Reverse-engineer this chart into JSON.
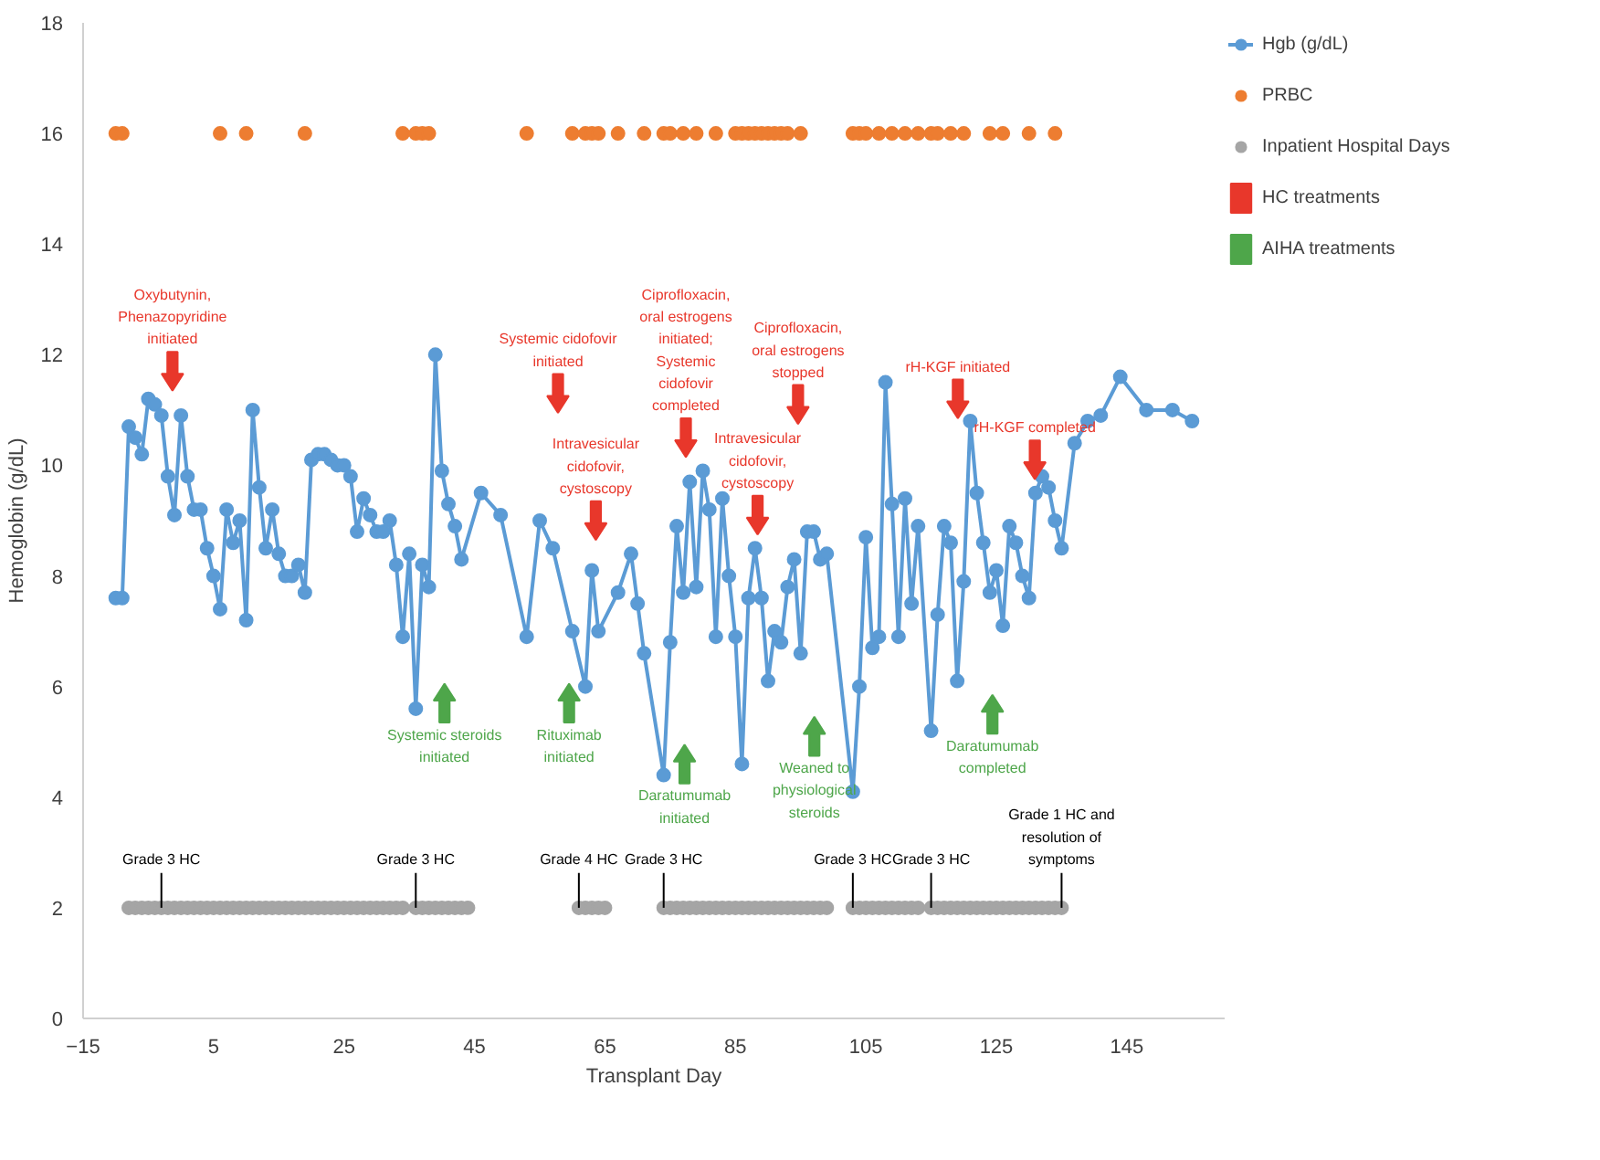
{
  "chart_data": {
    "type": "line",
    "xlabel": "Transplant Day",
    "ylabel": "Hemoglobin (g/dL)",
    "xlim": [
      -15,
      160
    ],
    "xticks": [
      -15,
      5,
      25,
      45,
      65,
      85,
      105,
      125,
      145
    ],
    "ylim": [
      0,
      18
    ],
    "yticks": [
      0,
      2,
      4,
      6,
      8,
      10,
      12,
      14,
      16,
      18
    ],
    "grid": false,
    "legend": "right",
    "series": [
      {
        "name": "Hgb (g/dL)",
        "marker": "circle",
        "color": "#5b9bd5",
        "x": [
          -10,
          -9,
          -8,
          -7,
          -6,
          -5,
          -4,
          -3,
          -2,
          -1,
          0,
          1,
          2,
          3,
          4,
          5,
          6,
          7,
          8,
          9,
          10,
          11,
          12,
          13,
          14,
          15,
          16,
          17,
          18,
          19,
          20,
          21,
          22,
          23,
          24,
          25,
          26,
          27,
          28,
          29,
          30,
          31,
          32,
          33,
          34,
          35,
          36,
          37,
          38,
          39,
          40,
          41,
          42,
          43,
          46,
          49,
          53,
          55,
          57,
          60,
          62,
          63,
          64,
          67,
          69,
          70,
          71,
          74,
          75,
          76,
          77,
          78,
          79,
          80,
          81,
          82,
          83,
          84,
          85,
          86,
          87,
          88,
          89,
          90,
          91,
          92,
          93,
          94,
          95,
          96,
          97,
          98,
          99,
          103,
          104,
          105,
          106,
          107,
          108,
          109,
          110,
          111,
          112,
          113,
          115,
          116,
          117,
          118,
          119,
          120,
          121,
          122,
          123,
          124,
          125,
          126,
          127,
          128,
          129,
          130,
          131,
          132,
          133,
          134,
          135,
          137,
          139,
          141,
          144,
          148,
          152,
          155
        ],
        "values": [
          7.6,
          7.6,
          10.7,
          10.5,
          10.2,
          11.2,
          11.1,
          10.9,
          9.8,
          9.1,
          10.9,
          9.8,
          9.2,
          9.2,
          8.5,
          8.0,
          7.4,
          9.2,
          8.6,
          9.0,
          7.2,
          11.0,
          9.6,
          8.5,
          9.2,
          8.4,
          8.0,
          8.0,
          8.2,
          7.7,
          10.1,
          10.2,
          10.2,
          10.1,
          10.0,
          10.0,
          9.8,
          8.8,
          9.4,
          9.1,
          8.8,
          8.8,
          9.0,
          8.2,
          6.9,
          8.4,
          5.6,
          8.2,
          7.8,
          12.0,
          9.9,
          9.3,
          8.9,
          8.3,
          9.5,
          9.1,
          6.9,
          9.0,
          8.5,
          7.0,
          6.0,
          8.1,
          7.0,
          7.7,
          8.4,
          7.5,
          6.6,
          4.4,
          6.8,
          8.9,
          7.7,
          9.7,
          7.8,
          9.9,
          9.2,
          6.9,
          9.4,
          8.0,
          6.9,
          4.6,
          7.6,
          8.5,
          7.6,
          6.1,
          7.0,
          6.8,
          7.8,
          8.3,
          6.6,
          8.8,
          8.8,
          8.3,
          8.4,
          4.1,
          6.0,
          8.7,
          6.7,
          6.9,
          11.5,
          9.3,
          6.9,
          9.4,
          7.5,
          8.9,
          5.2,
          7.3,
          8.9,
          8.6,
          6.1,
          7.9,
          10.8,
          9.5,
          8.6,
          7.7,
          8.1,
          7.1,
          8.9,
          8.6,
          8.0,
          7.6,
          9.5,
          9.8,
          9.6,
          9.0,
          8.5,
          10.4,
          10.8,
          10.9,
          11.6,
          11.0,
          11.0,
          10.8
        ]
      },
      {
        "name": "PRBC",
        "type": "scatter",
        "marker": "circle",
        "color": "#ed7d31",
        "x": [
          -10,
          -9,
          6,
          10,
          19,
          34,
          36,
          37,
          38,
          53,
          60,
          62,
          63,
          64,
          67,
          71,
          74,
          75,
          77,
          79,
          82,
          85,
          86,
          87,
          88,
          89,
          90,
          91,
          92,
          93,
          95,
          103,
          104,
          105,
          107,
          109,
          111,
          113,
          115,
          116,
          118,
          120,
          124,
          126,
          130,
          134
        ],
        "values": [
          16,
          16,
          16,
          16,
          16,
          16,
          16,
          16,
          16,
          16,
          16,
          16,
          16,
          16,
          16,
          16,
          16,
          16,
          16,
          16,
          16,
          16,
          16,
          16,
          16,
          16,
          16,
          16,
          16,
          16,
          16,
          16,
          16,
          16,
          16,
          16,
          16,
          16,
          16,
          16,
          16,
          16,
          16,
          16,
          16,
          16
        ]
      },
      {
        "name": "Inpatient Hospital Days",
        "type": "scatter",
        "marker": "circle",
        "color": "#a5a5a5",
        "x": [
          -8,
          -7,
          -6,
          -5,
          -4,
          -3,
          -2,
          -1,
          0,
          1,
          2,
          3,
          4,
          5,
          6,
          7,
          8,
          9,
          10,
          11,
          12,
          13,
          14,
          15,
          16,
          17,
          18,
          19,
          20,
          21,
          22,
          23,
          24,
          25,
          26,
          27,
          28,
          29,
          30,
          31,
          32,
          33,
          34,
          36,
          37,
          38,
          39,
          40,
          41,
          42,
          43,
          44,
          61,
          62,
          63,
          64,
          65,
          74,
          75,
          76,
          77,
          78,
          79,
          80,
          81,
          82,
          83,
          84,
          85,
          86,
          87,
          88,
          89,
          90,
          91,
          92,
          93,
          94,
          95,
          96,
          97,
          98,
          99,
          103,
          104,
          105,
          106,
          107,
          108,
          109,
          110,
          111,
          112,
          113,
          115,
          116,
          117,
          118,
          119,
          120,
          121,
          122,
          123,
          124,
          125,
          126,
          127,
          128,
          129,
          130,
          131,
          132,
          133,
          134,
          135
        ],
        "values": [
          2,
          2,
          2,
          2,
          2,
          2,
          2,
          2,
          2,
          2,
          2,
          2,
          2,
          2,
          2,
          2,
          2,
          2,
          2,
          2,
          2,
          2,
          2,
          2,
          2,
          2,
          2,
          2,
          2,
          2,
          2,
          2,
          2,
          2,
          2,
          2,
          2,
          2,
          2,
          2,
          2,
          2,
          2,
          2,
          2,
          2,
          2,
          2,
          2,
          2,
          2,
          2,
          2,
          2,
          2,
          2,
          2,
          2,
          2,
          2,
          2,
          2,
          2,
          2,
          2,
          2,
          2,
          2,
          2,
          2,
          2,
          2,
          2,
          2,
          2,
          2,
          2,
          2,
          2,
          2,
          2,
          2,
          2,
          2,
          2,
          2,
          2,
          2,
          2,
          2,
          2,
          2,
          2,
          2,
          2,
          2,
          2,
          2,
          2,
          2,
          2,
          2,
          2,
          2,
          2,
          2,
          2,
          2,
          2,
          2,
          2,
          2,
          2,
          2,
          2
        ]
      },
      {
        "name": "HC treatments",
        "type": "scatter",
        "color": "#e8372b",
        "x": [
          -1.3,
          57.8,
          63.6,
          77.4,
          88.4,
          94.6,
          119.1,
          130.9
        ],
        "values": [
          11.7,
          11.3,
          9.0,
          10.5,
          9.1,
          11.1,
          11.2,
          10.1
        ]
      },
      {
        "name": "AIHA treatments",
        "type": "scatter",
        "color": "#4ea64a",
        "x": [
          40.4,
          59.5,
          77.2,
          97.1,
          124.4
        ],
        "values": [
          5.7,
          5.7,
          4.6,
          5.1,
          5.5
        ]
      }
    ],
    "annotations": [
      {
        "text": "Oxybutynin,\nPhenazopyridine\ninitiated",
        "x": -1.3,
        "y": 11.7
      },
      {
        "text": "Systemic cidofovir\ninitiated",
        "x": 57.8,
        "y": 11.3
      },
      {
        "text": "Intravesicular\ncidofovir,\ncystoscopy",
        "x": 63.6,
        "y": 9.0
      },
      {
        "text": "Ciprofloxacin,\noral estrogens\ninitiated;\nSystemic\ncidofovir\ncompleted",
        "x": 77.4,
        "y": 10.5
      },
      {
        "text": "Intravesicular\ncidofovir,\ncystoscopy",
        "x": 88.4,
        "y": 9.1
      },
      {
        "text": "Ciprofloxacin,\noral estrogens\nstopped",
        "x": 94.6,
        "y": 11.1
      },
      {
        "text": "rH-KGF initiated",
        "x": 119.1,
        "y": 11.2
      },
      {
        "text": "rH-KGF completed",
        "x": 130.9,
        "y": 10.1
      },
      {
        "text": "Systemic steroids\ninitiated",
        "x": 40.4,
        "y": 5.7
      },
      {
        "text": "Rituximab\ninitiated",
        "x": 59.5,
        "y": 5.7
      },
      {
        "text": "Daratumumab\ninitiated",
        "x": 77.2,
        "y": 4.6
      },
      {
        "text": "Weaned to\nphysiological\nsteroids",
        "x": 97.1,
        "y": 5.1
      },
      {
        "text": "Daratumumab\ncompleted",
        "x": 124.4,
        "y": 5.5
      },
      {
        "text": "Grade 3 HC",
        "x": -3,
        "y": 2
      },
      {
        "text": "Grade 3 HC",
        "x": 36,
        "y": 2
      },
      {
        "text": "Grade 4 HC",
        "x": 61,
        "y": 2
      },
      {
        "text": "Grade 3 HC",
        "x": 74,
        "y": 2
      },
      {
        "text": "Grade 3 HC",
        "x": 103,
        "y": 2
      },
      {
        "text": "Grade 3 HC",
        "x": 115,
        "y": 2
      },
      {
        "text": "Grade 1 HC and\nresolution of\nsymptoms",
        "x": 135,
        "y": 2
      }
    ]
  }
}
